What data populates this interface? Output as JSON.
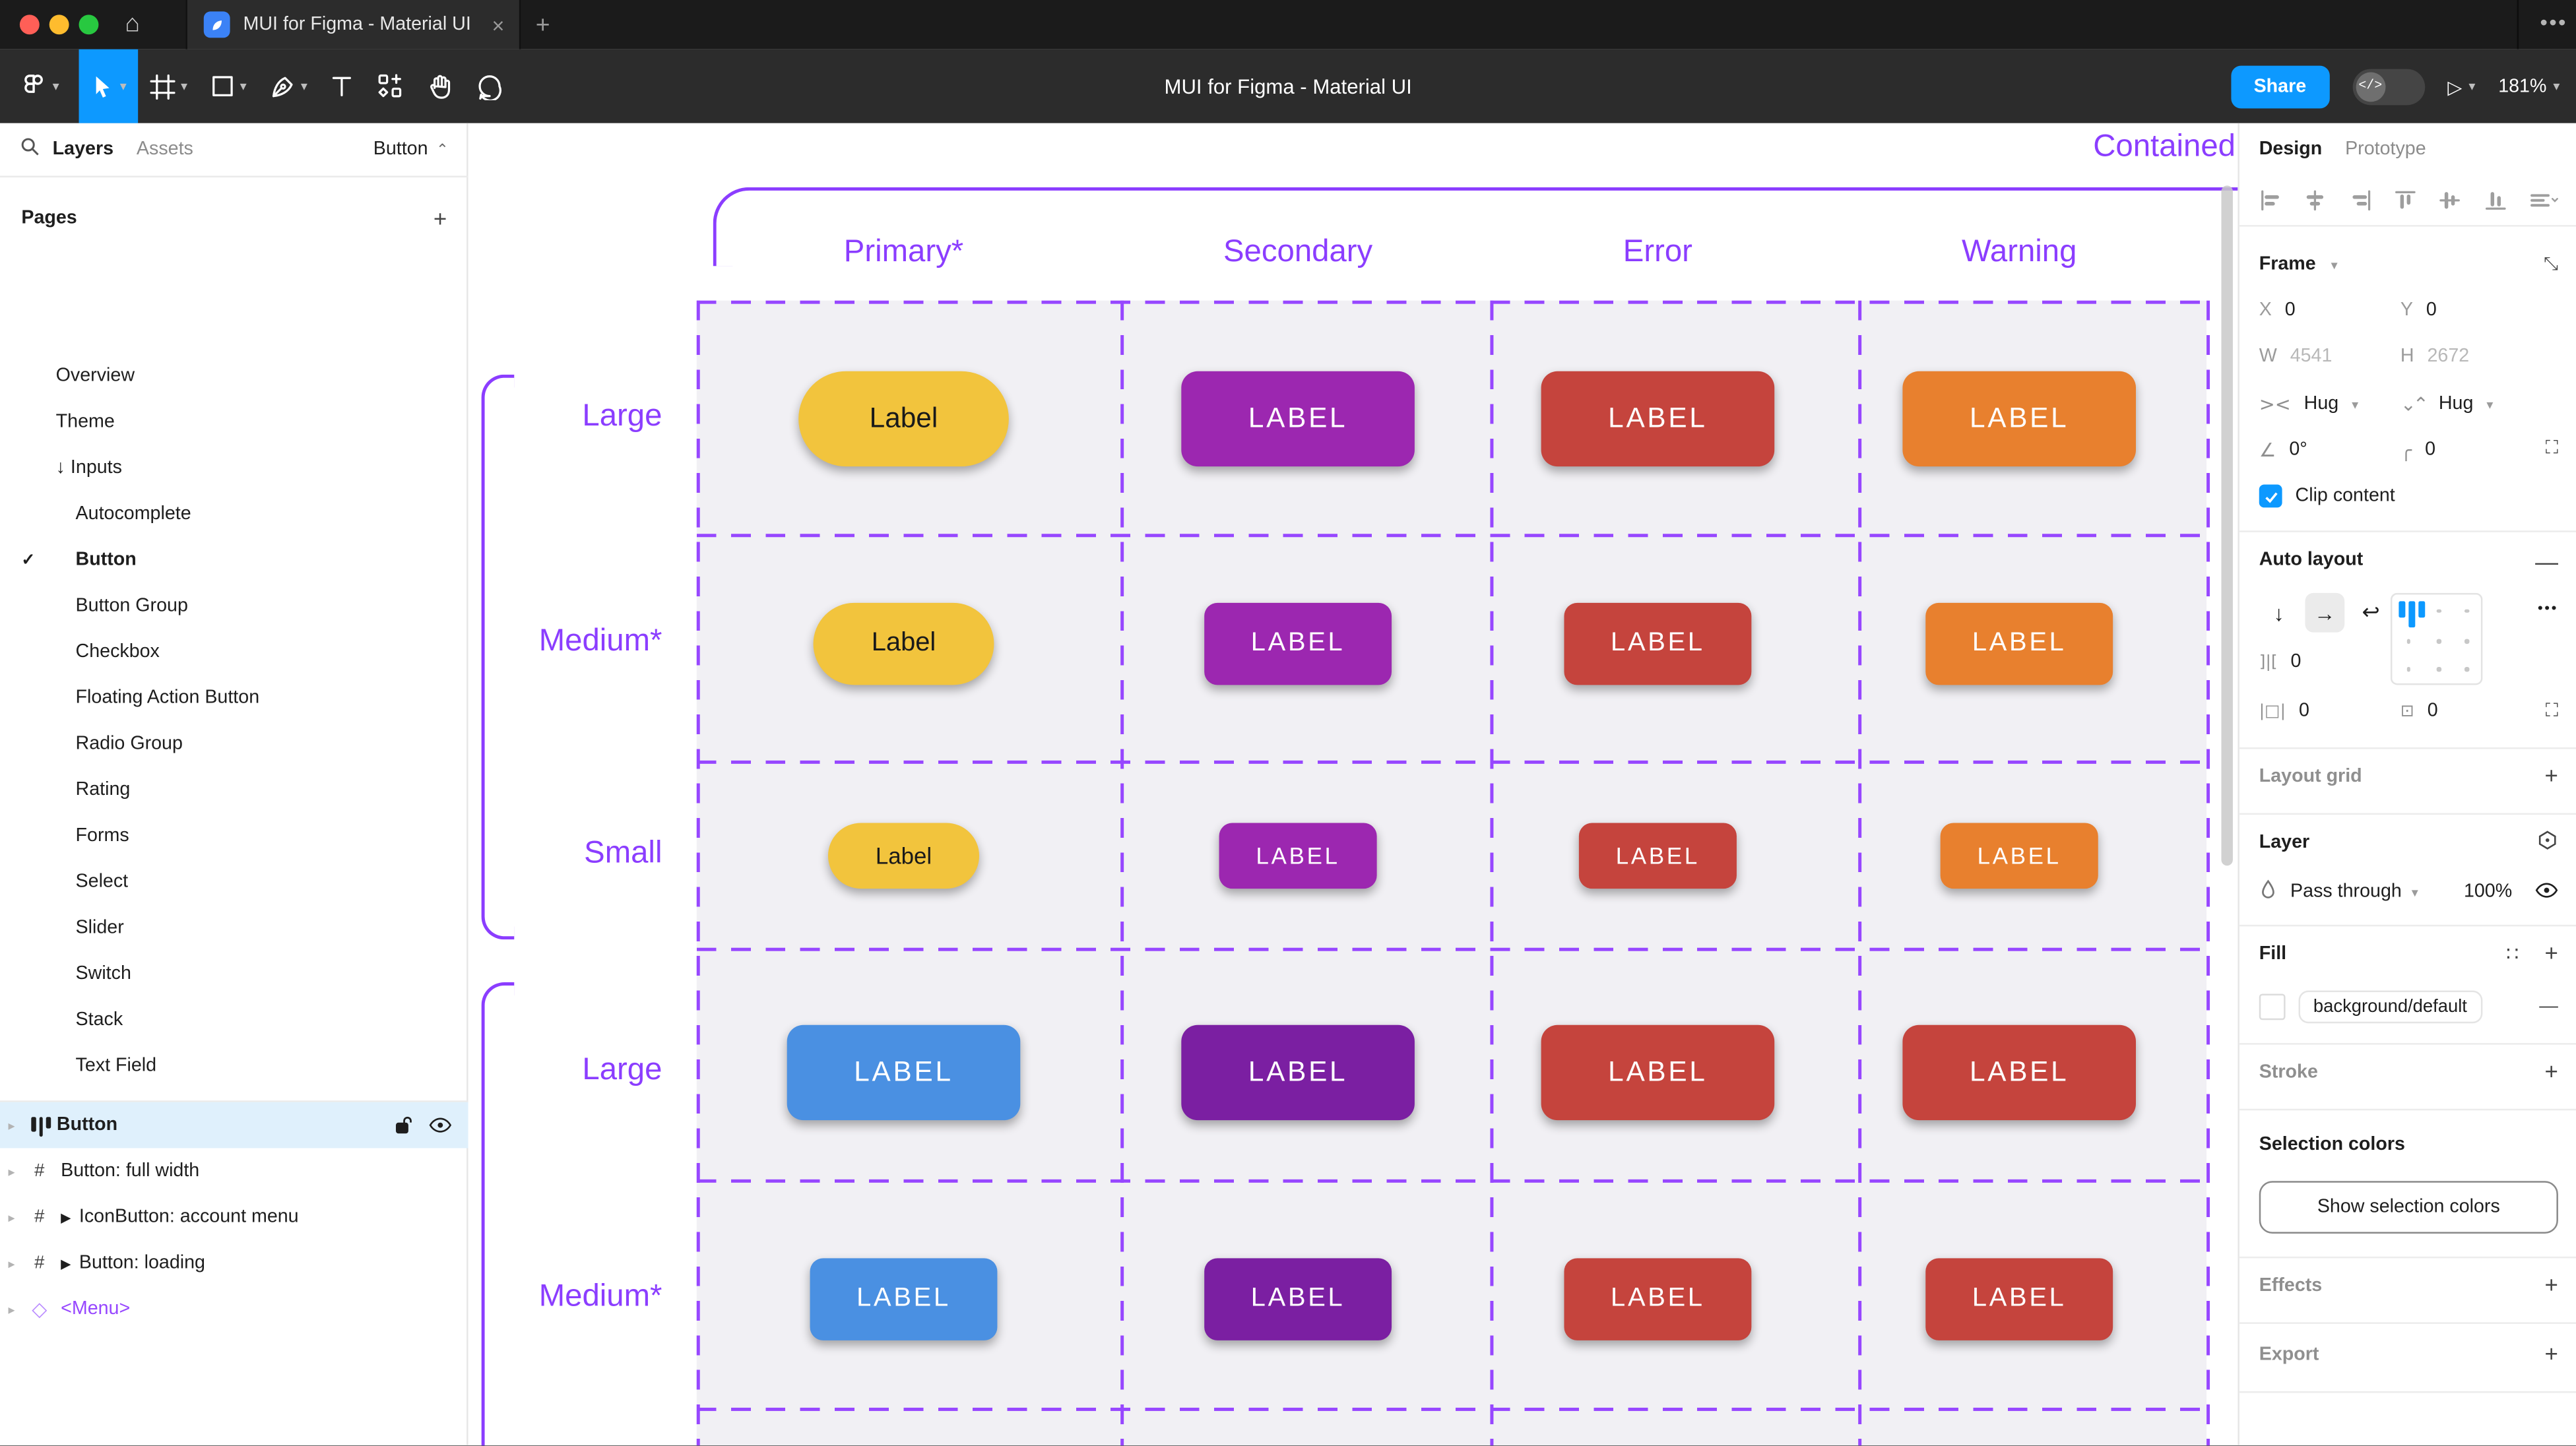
{
  "window": {
    "tab_title": "MUI for Figma - Material UI",
    "close_glyph": "×",
    "new_tab_glyph": "+",
    "more_glyph": "•••",
    "home_glyph": "⌂"
  },
  "toolbar": {
    "doc_title": "MUI for Figma - Material UI",
    "share_label": "Share",
    "dev_toggle_glyph": "</>",
    "play_glyph": "▷",
    "zoom_level": "181%",
    "tools": [
      {
        "name": "main-menu",
        "chevron": true,
        "selected": false
      },
      {
        "name": "move-tool",
        "chevron": true,
        "selected": true
      },
      {
        "name": "frame-tool",
        "chevron": true,
        "selected": false
      },
      {
        "name": "shape-tool",
        "chevron": true,
        "selected": false
      },
      {
        "name": "pen-tool",
        "chevron": true,
        "selected": false
      },
      {
        "name": "text-tool",
        "chevron": false,
        "selected": false
      },
      {
        "name": "resources-tool",
        "chevron": false,
        "selected": false
      },
      {
        "name": "hand-tool",
        "chevron": false,
        "selected": false
      },
      {
        "name": "comment-tool",
        "chevron": false,
        "selected": false
      }
    ]
  },
  "left_sidebar": {
    "tabs": {
      "layers": "Layers",
      "assets": "Assets"
    },
    "page_picker": "Button",
    "pages_header": "Pages",
    "pages": [
      {
        "label": "Overview",
        "indent": 0,
        "checked": false,
        "prefix": ""
      },
      {
        "label": "Theme",
        "indent": 0,
        "checked": false,
        "prefix": ""
      },
      {
        "label": "Inputs",
        "indent": 0,
        "checked": false,
        "prefix": "↓ "
      },
      {
        "label": "Autocomplete",
        "indent": 1,
        "checked": false,
        "prefix": ""
      },
      {
        "label": "Button",
        "indent": 1,
        "checked": true,
        "prefix": ""
      },
      {
        "label": "Button Group",
        "indent": 1,
        "checked": false,
        "prefix": ""
      },
      {
        "label": "Checkbox",
        "indent": 1,
        "checked": false,
        "prefix": ""
      },
      {
        "label": "Floating Action Button",
        "indent": 1,
        "checked": false,
        "prefix": ""
      },
      {
        "label": "Radio Group",
        "indent": 1,
        "checked": false,
        "prefix": ""
      },
      {
        "label": "Rating",
        "indent": 1,
        "checked": false,
        "prefix": ""
      },
      {
        "label": "Forms",
        "indent": 1,
        "checked": false,
        "prefix": ""
      },
      {
        "label": "Select",
        "indent": 1,
        "checked": false,
        "prefix": ""
      },
      {
        "label": "Slider",
        "indent": 1,
        "checked": false,
        "prefix": ""
      },
      {
        "label": "Switch",
        "indent": 1,
        "checked": false,
        "prefix": ""
      },
      {
        "label": "Stack",
        "indent": 1,
        "checked": false,
        "prefix": ""
      },
      {
        "label": "Text Field",
        "indent": 1,
        "checked": false,
        "prefix": ""
      }
    ],
    "layers": [
      {
        "label": "Button",
        "icon": "auto-layout",
        "selected": true,
        "component_marker": false,
        "instance": false,
        "lock_eye": true
      },
      {
        "label": "Button: full width",
        "icon": "frame",
        "selected": false,
        "component_marker": false,
        "instance": false,
        "lock_eye": false
      },
      {
        "label": "IconButton: account menu",
        "icon": "frame",
        "selected": false,
        "component_marker": true,
        "instance": false,
        "lock_eye": false
      },
      {
        "label": "Button: loading",
        "icon": "frame",
        "selected": false,
        "component_marker": true,
        "instance": false,
        "lock_eye": false
      },
      {
        "label": "<Menu>",
        "icon": "instance-diamond",
        "selected": false,
        "component_marker": false,
        "instance": true,
        "lock_eye": false
      }
    ]
  },
  "canvas": {
    "frame_title": "Contained",
    "annotation_color": "#8B3DFF",
    "dash_color": "#9747FF",
    "cell_bg": "#F1F0F4",
    "columns": [
      "Primary*",
      "Secondary",
      "Error",
      "Warning"
    ],
    "rows": [
      {
        "label": "Large",
        "size": "large",
        "buttons": [
          {
            "text": "Label",
            "bg": "#F2C43D",
            "fg": "#1A1A1A",
            "pill": true
          },
          {
            "text": "LABEL",
            "bg": "#9C27B0",
            "fg": "#FFFFFF",
            "pill": false
          },
          {
            "text": "LABEL",
            "bg": "#C5443D",
            "fg": "#FFFFFF",
            "pill": false
          },
          {
            "text": "LABEL",
            "bg": "#E8802E",
            "fg": "#FFFFFF",
            "pill": false
          }
        ]
      },
      {
        "label": "Medium*",
        "size": "medium",
        "buttons": [
          {
            "text": "Label",
            "bg": "#F2C43D",
            "fg": "#1A1A1A",
            "pill": true
          },
          {
            "text": "LABEL",
            "bg": "#9C27B0",
            "fg": "#FFFFFF",
            "pill": false
          },
          {
            "text": "LABEL",
            "bg": "#C5443D",
            "fg": "#FFFFFF",
            "pill": false
          },
          {
            "text": "LABEL",
            "bg": "#E8802E",
            "fg": "#FFFFFF",
            "pill": false
          }
        ]
      },
      {
        "label": "Small",
        "size": "small",
        "buttons": [
          {
            "text": "Label",
            "bg": "#F2C43D",
            "fg": "#1A1A1A",
            "pill": true
          },
          {
            "text": "LABEL",
            "bg": "#9C27B0",
            "fg": "#FFFFFF",
            "pill": false
          },
          {
            "text": "LABEL",
            "bg": "#C5443D",
            "fg": "#FFFFFF",
            "pill": false
          },
          {
            "text": "LABEL",
            "bg": "#E8802E",
            "fg": "#FFFFFF",
            "pill": false
          }
        ]
      },
      {
        "label": "Large",
        "size": "large",
        "buttons": [
          {
            "text": "LABEL",
            "bg": "#4A90E2",
            "fg": "#FFFFFF",
            "pill": false
          },
          {
            "text": "LABEL",
            "bg": "#7B1FA2",
            "fg": "#FFFFFF",
            "pill": false
          },
          {
            "text": "LABEL",
            "bg": "#C5443D",
            "fg": "#FFFFFF",
            "pill": false
          },
          {
            "text": "LABEL",
            "bg": "#C5443D",
            "fg": "#FFFFFF",
            "pill": false
          }
        ]
      },
      {
        "label": "Medium*",
        "size": "medium",
        "buttons": [
          {
            "text": "LABEL",
            "bg": "#4A90E2",
            "fg": "#FFFFFF",
            "pill": false
          },
          {
            "text": "LABEL",
            "bg": "#7B1FA2",
            "fg": "#FFFFFF",
            "pill": false
          },
          {
            "text": "LABEL",
            "bg": "#C5443D",
            "fg": "#FFFFFF",
            "pill": false
          },
          {
            "text": "LABEL",
            "bg": "#C5443D",
            "fg": "#FFFFFF",
            "pill": false
          }
        ]
      }
    ]
  },
  "right_sidebar": {
    "tabs": {
      "design": "Design",
      "prototype": "Prototype"
    },
    "frame": {
      "title": "Frame",
      "x_label": "X",
      "x_value": "0",
      "y_label": "Y",
      "y_value": "0",
      "w_label": "W",
      "w_value": "4541",
      "h_label": "H",
      "h_value": "2672",
      "hug_h": "Hug",
      "hug_v": "Hug",
      "rotation": "0°",
      "corner_radius": "0",
      "clip_label": "Clip content"
    },
    "auto_layout": {
      "title": "Auto layout",
      "gap_value": "0",
      "padding_h_value": "0",
      "padding_v_value": "0",
      "more_glyph": "•••"
    },
    "layout_grid_title": "Layout grid",
    "layer": {
      "title": "Layer",
      "blend_mode": "Pass through",
      "opacity": "100%"
    },
    "fill": {
      "title": "Fill",
      "token": "background/default",
      "styles_glyph": "∷",
      "remove_glyph": "—"
    },
    "stroke_title": "Stroke",
    "selection_colors": {
      "title": "Selection colors",
      "button_label": "Show selection colors"
    },
    "effects_title": "Effects",
    "export_title": "Export",
    "accent": "#0D99FF"
  }
}
